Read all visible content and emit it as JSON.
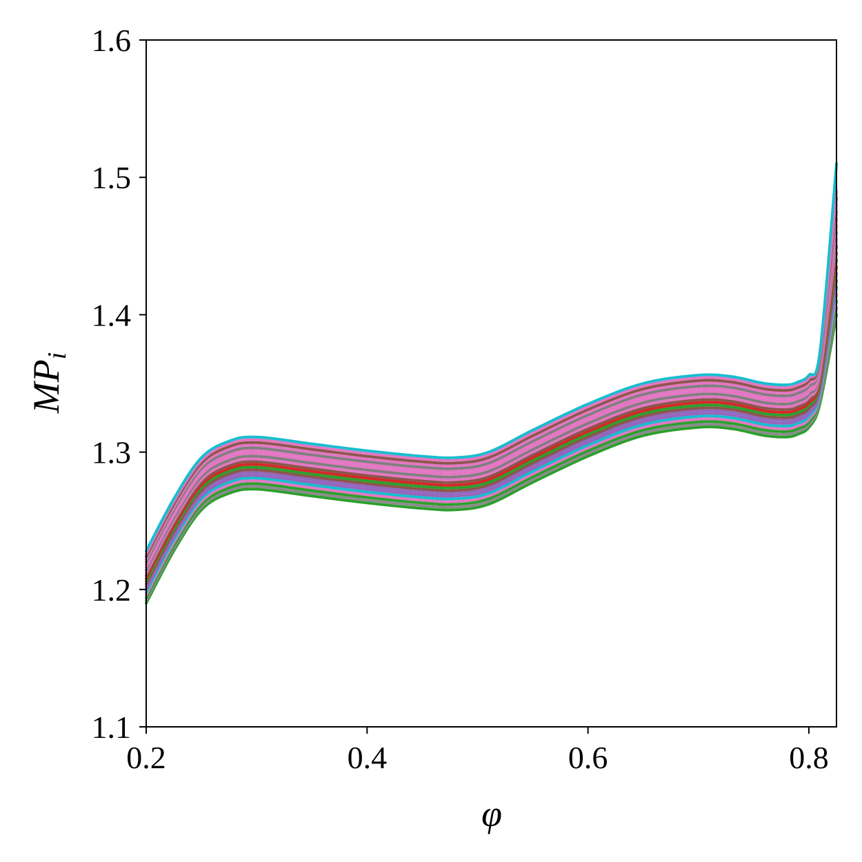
{
  "chart_data": {
    "type": "line",
    "title": "",
    "xlabel": "φ",
    "ylabel": "MP",
    "ylabel_subscript": "i",
    "xlim": [
      0.2,
      0.825
    ],
    "ylim": [
      1.1,
      1.6
    ],
    "xticks": [
      0.2,
      0.4,
      0.6,
      0.8
    ],
    "xtick_labels": [
      "0.2",
      "0.4",
      "0.6",
      "0.8"
    ],
    "yticks": [
      1.1,
      1.2,
      1.3,
      1.4,
      1.5,
      1.6
    ],
    "ytick_labels": [
      "1.1",
      "1.2",
      "1.3",
      "1.4",
      "1.5",
      "1.6"
    ],
    "grid": false,
    "legend": "none",
    "x": [
      0.2,
      0.225,
      0.25,
      0.275,
      0.3,
      0.35,
      0.4,
      0.45,
      0.48,
      0.51,
      0.55,
      0.6,
      0.65,
      0.7,
      0.73,
      0.76,
      0.78,
      0.79,
      0.8,
      0.81,
      0.825
    ],
    "series": [
      {
        "color": "#2ca02c",
        "values": [
          1.19,
          1.228,
          1.258,
          1.27,
          1.273,
          1.268,
          1.263,
          1.259,
          1.258,
          1.262,
          1.278,
          1.297,
          1.312,
          1.318,
          1.317,
          1.312,
          1.311,
          1.313,
          1.318,
          1.335,
          1.4
        ]
      },
      {
        "color": "#8c8c8c",
        "values": [
          1.192,
          1.23,
          1.26,
          1.272,
          1.275,
          1.27,
          1.265,
          1.261,
          1.26,
          1.264,
          1.28,
          1.299,
          1.314,
          1.32,
          1.319,
          1.314,
          1.313,
          1.315,
          1.32,
          1.337,
          1.405
        ]
      },
      {
        "color": "#2ca02c",
        "values": [
          1.194,
          1.232,
          1.262,
          1.274,
          1.277,
          1.272,
          1.267,
          1.263,
          1.262,
          1.266,
          1.282,
          1.301,
          1.316,
          1.322,
          1.321,
          1.316,
          1.315,
          1.317,
          1.322,
          1.339,
          1.41
        ]
      },
      {
        "color": "#e377c2",
        "values": [
          1.196,
          1.234,
          1.264,
          1.276,
          1.279,
          1.274,
          1.269,
          1.265,
          1.264,
          1.268,
          1.284,
          1.303,
          1.318,
          1.324,
          1.323,
          1.318,
          1.317,
          1.319,
          1.324,
          1.341,
          1.415
        ]
      },
      {
        "color": "#17becf",
        "values": [
          1.198,
          1.236,
          1.266,
          1.278,
          1.281,
          1.276,
          1.271,
          1.267,
          1.266,
          1.27,
          1.286,
          1.305,
          1.32,
          1.326,
          1.325,
          1.32,
          1.319,
          1.321,
          1.326,
          1.343,
          1.42
        ]
      },
      {
        "color": "#9467bd",
        "values": [
          1.2,
          1.238,
          1.268,
          1.28,
          1.283,
          1.278,
          1.273,
          1.269,
          1.268,
          1.272,
          1.288,
          1.307,
          1.322,
          1.328,
          1.327,
          1.322,
          1.321,
          1.323,
          1.328,
          1.345,
          1.425
        ]
      },
      {
        "color": "#9467bd",
        "values": [
          1.202,
          1.24,
          1.27,
          1.282,
          1.285,
          1.28,
          1.275,
          1.271,
          1.27,
          1.274,
          1.29,
          1.309,
          1.324,
          1.33,
          1.329,
          1.324,
          1.323,
          1.325,
          1.33,
          1.347,
          1.43
        ]
      },
      {
        "color": "#8c564b",
        "values": [
          1.204,
          1.242,
          1.272,
          1.284,
          1.287,
          1.282,
          1.277,
          1.273,
          1.272,
          1.276,
          1.292,
          1.311,
          1.326,
          1.332,
          1.331,
          1.326,
          1.325,
          1.327,
          1.332,
          1.349,
          1.435
        ]
      },
      {
        "color": "#2ca02c",
        "values": [
          1.206,
          1.244,
          1.274,
          1.286,
          1.289,
          1.284,
          1.279,
          1.275,
          1.274,
          1.278,
          1.294,
          1.313,
          1.328,
          1.334,
          1.333,
          1.328,
          1.327,
          1.329,
          1.334,
          1.351,
          1.44
        ]
      },
      {
        "color": "#d62728",
        "values": [
          1.208,
          1.246,
          1.276,
          1.288,
          1.291,
          1.286,
          1.281,
          1.277,
          1.276,
          1.28,
          1.296,
          1.315,
          1.33,
          1.336,
          1.335,
          1.33,
          1.329,
          1.331,
          1.336,
          1.353,
          1.445
        ]
      },
      {
        "color": "#8c564b",
        "values": [
          1.21,
          1.248,
          1.278,
          1.29,
          1.293,
          1.288,
          1.283,
          1.279,
          1.278,
          1.282,
          1.298,
          1.317,
          1.332,
          1.338,
          1.337,
          1.332,
          1.331,
          1.333,
          1.338,
          1.355,
          1.45
        ]
      },
      {
        "color": "#e377c2",
        "values": [
          1.212,
          1.25,
          1.28,
          1.292,
          1.295,
          1.29,
          1.285,
          1.281,
          1.28,
          1.284,
          1.3,
          1.319,
          1.334,
          1.34,
          1.339,
          1.334,
          1.333,
          1.335,
          1.34,
          1.357,
          1.455
        ]
      },
      {
        "color": "#7f7f7f",
        "values": [
          1.214,
          1.252,
          1.282,
          1.294,
          1.297,
          1.292,
          1.287,
          1.283,
          1.282,
          1.286,
          1.302,
          1.321,
          1.336,
          1.342,
          1.341,
          1.336,
          1.335,
          1.337,
          1.342,
          1.359,
          1.46
        ]
      },
      {
        "color": "#e377c2",
        "values": [
          1.216,
          1.254,
          1.284,
          1.296,
          1.299,
          1.294,
          1.289,
          1.285,
          1.284,
          1.288,
          1.304,
          1.323,
          1.338,
          1.344,
          1.343,
          1.338,
          1.337,
          1.339,
          1.344,
          1.361,
          1.465
        ]
      },
      {
        "color": "#e377c2",
        "values": [
          1.218,
          1.256,
          1.286,
          1.298,
          1.301,
          1.296,
          1.291,
          1.287,
          1.286,
          1.29,
          1.306,
          1.325,
          1.34,
          1.346,
          1.345,
          1.34,
          1.339,
          1.341,
          1.346,
          1.363,
          1.47
        ]
      },
      {
        "color": "#7f7f7f",
        "values": [
          1.22,
          1.258,
          1.288,
          1.3,
          1.303,
          1.298,
          1.293,
          1.289,
          1.288,
          1.292,
          1.308,
          1.327,
          1.342,
          1.348,
          1.347,
          1.342,
          1.341,
          1.343,
          1.348,
          1.365,
          1.475
        ]
      },
      {
        "color": "#e377c2",
        "values": [
          1.222,
          1.26,
          1.29,
          1.302,
          1.305,
          1.3,
          1.295,
          1.291,
          1.29,
          1.294,
          1.31,
          1.329,
          1.344,
          1.35,
          1.349,
          1.344,
          1.343,
          1.345,
          1.35,
          1.367,
          1.48
        ]
      },
      {
        "color": "#8c564b",
        "values": [
          1.224,
          1.262,
          1.292,
          1.304,
          1.307,
          1.302,
          1.297,
          1.293,
          1.292,
          1.296,
          1.312,
          1.331,
          1.346,
          1.352,
          1.351,
          1.346,
          1.345,
          1.347,
          1.352,
          1.369,
          1.485
        ]
      },
      {
        "color": "#e377c2",
        "values": [
          1.226,
          1.264,
          1.294,
          1.306,
          1.309,
          1.304,
          1.299,
          1.295,
          1.294,
          1.298,
          1.314,
          1.333,
          1.348,
          1.354,
          1.353,
          1.348,
          1.347,
          1.349,
          1.354,
          1.371,
          1.49
        ]
      },
      {
        "color": "#17becf",
        "values": [
          1.228,
          1.266,
          1.296,
          1.308,
          1.311,
          1.306,
          1.301,
          1.297,
          1.296,
          1.3,
          1.316,
          1.335,
          1.35,
          1.356,
          1.355,
          1.35,
          1.349,
          1.351,
          1.356,
          1.373,
          1.51
        ]
      }
    ]
  }
}
